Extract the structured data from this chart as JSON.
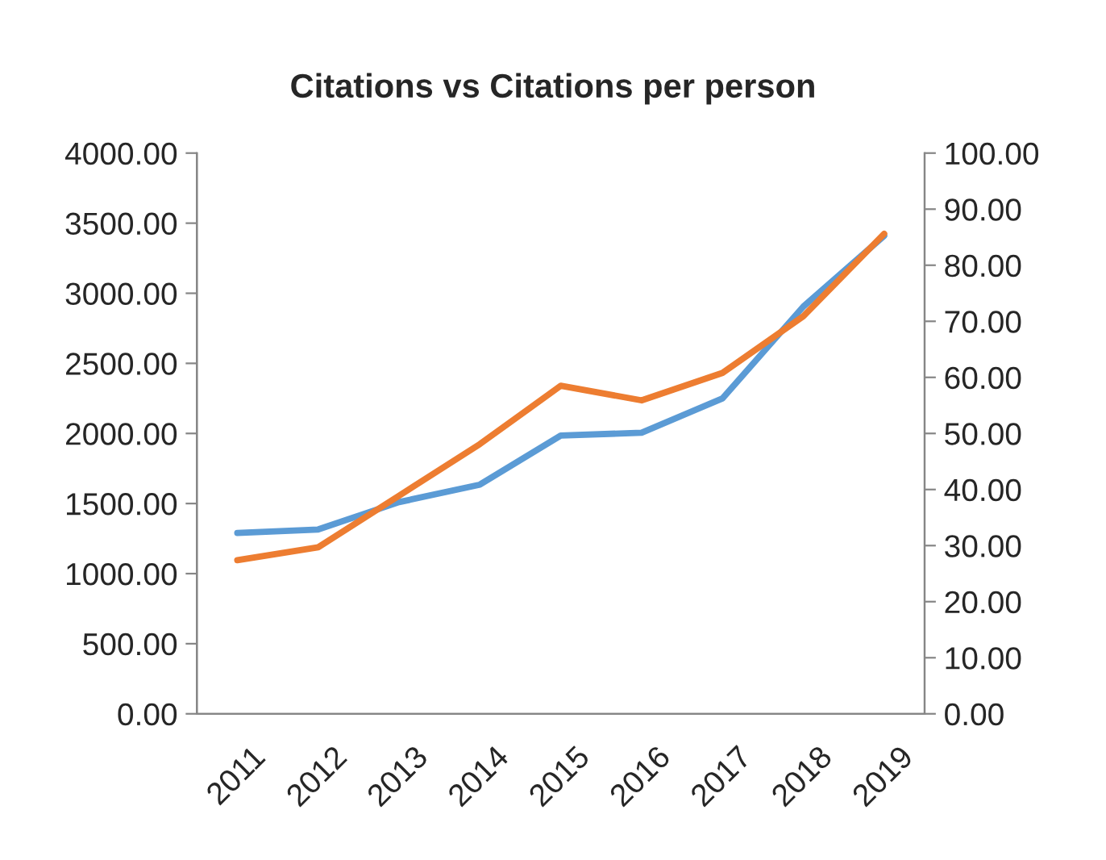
{
  "chart_data": {
    "type": "line",
    "title": "Citations vs Citations per person",
    "categories": [
      "2011",
      "2012",
      "2013",
      "2014",
      "2015",
      "2016",
      "2017",
      "2018",
      "2019"
    ],
    "series": [
      {
        "color": "#5b9bd5",
        "values": [
          1290,
          1315,
          1510,
          1635,
          1985,
          2005,
          2250,
          2905,
          3410
        ]
      },
      {
        "color": "#ed7d31",
        "axis": "y2",
        "values": [
          27.4,
          29.7,
          38.9,
          48.1,
          58.5,
          55.9,
          60.8,
          70.9,
          85.6
        ]
      }
    ],
    "ylim": [
      0,
      4000
    ],
    "yticks": [
      {
        "value": 0,
        "label": "0.00"
      },
      {
        "value": 500,
        "label": "500.00"
      },
      {
        "value": 1000,
        "label": "1000.00"
      },
      {
        "value": 1500,
        "label": "1500.00"
      },
      {
        "value": 2000,
        "label": "2000.00"
      },
      {
        "value": 2500,
        "label": "2500.00"
      },
      {
        "value": 3000,
        "label": "3000.00"
      },
      {
        "value": 3500,
        "label": "3500.00"
      },
      {
        "value": 4000,
        "label": "4000.00"
      }
    ],
    "y2lim": [
      0,
      100
    ],
    "y2ticks": [
      {
        "value": 0,
        "label": "0.00"
      },
      {
        "value": 10,
        "label": "10.00"
      },
      {
        "value": 20,
        "label": "20.00"
      },
      {
        "value": 30,
        "label": "30.00"
      },
      {
        "value": 40,
        "label": "40.00"
      },
      {
        "value": 50,
        "label": "50.00"
      },
      {
        "value": 60,
        "label": "60.00"
      },
      {
        "value": 70,
        "label": "70.00"
      },
      {
        "value": 80,
        "label": "80.00"
      },
      {
        "value": 90,
        "label": "90.00"
      },
      {
        "value": 100,
        "label": "100.00"
      }
    ],
    "grid": false,
    "legend": false,
    "marker": "none",
    "line_style": "solid"
  }
}
